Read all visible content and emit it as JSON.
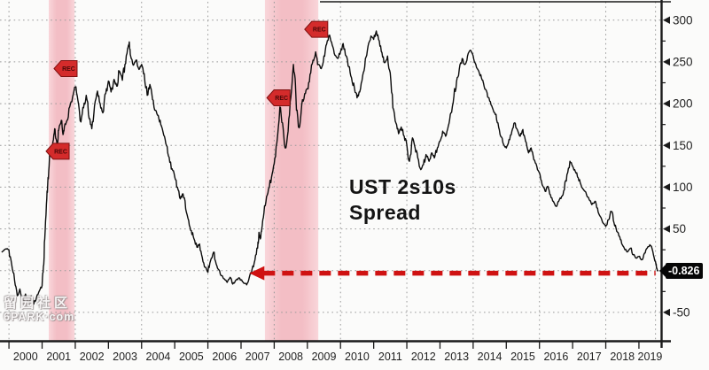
{
  "watermark": {
    "line1": "留园社区",
    "line2": "6PARK·com"
  },
  "chart_data": {
    "type": "line",
    "title": "UST 2s10s Spread",
    "title_lines": [
      "UST 2s10s",
      "Spread"
    ],
    "xlabel": "",
    "ylabel": "",
    "legend": "none",
    "grid": "dotted",
    "xlim": [
      1999.73,
      2019.67
    ],
    "ylim": [
      -84,
      322
    ],
    "x_ticks": [
      2000,
      2001,
      2002,
      2003,
      2004,
      2005,
      2006,
      2007,
      2008,
      2009,
      2010,
      2011,
      2012,
      2013,
      2014,
      2015,
      2016,
      2017,
      2018,
      2019
    ],
    "y_ticks": [
      300,
      250,
      200,
      150,
      100,
      50,
      -50
    ],
    "y_gridlines": [
      300,
      250,
      200,
      150,
      100,
      50,
      0,
      -50
    ],
    "y_minor_ticks": [
      275,
      225,
      175,
      125,
      75,
      25,
      -25
    ],
    "vgrid_years": [
      2000,
      2002,
      2004,
      2006,
      2008,
      2010,
      2012,
      2014,
      2016,
      2018,
      2019.5
    ],
    "last_value": -0.826,
    "last_value_label": "-0.826",
    "recession_bands": [
      {
        "from": 2001.2,
        "to": 2001.98
      },
      {
        "from": 2007.72,
        "to": 2009.33
      }
    ],
    "flags": [
      {
        "label": "REC",
        "x": 2001.12,
        "y": 143
      },
      {
        "label": "REC",
        "x": 2001.36,
        "y": 242
      },
      {
        "label": "REC",
        "x": 2007.78,
        "y": 207
      },
      {
        "label": "REC",
        "x": 2008.92,
        "y": 289
      }
    ],
    "arrow": {
      "y": -3,
      "x_from": 2007.25,
      "x_to": 2019.5
    },
    "colors": {
      "line": "#0c0c0c",
      "grid": "#9a9a9a",
      "band": "#f3bec5",
      "band_edge": "#f9d6da",
      "flag_fill": "#d42b2b",
      "flag_border": "#7e1111",
      "flag_text": "#4a0707",
      "arrow": "#cf1212",
      "axis": "#1a1a1a",
      "tick_text": "#1f1f1f",
      "value_box": "#060606"
    },
    "series": [
      {
        "name": "UST 2s10s Spread",
        "points": [
          [
            1999.78,
            22
          ],
          [
            1999.9,
            26
          ],
          [
            2000.0,
            25
          ],
          [
            2000.08,
            8
          ],
          [
            2000.17,
            -12
          ],
          [
            2000.25,
            -30
          ],
          [
            2000.33,
            -22
          ],
          [
            2000.42,
            -38
          ],
          [
            2000.5,
            -28
          ],
          [
            2000.58,
            -42
          ],
          [
            2000.67,
            -30
          ],
          [
            2000.75,
            -40
          ],
          [
            2000.83,
            -32
          ],
          [
            2000.92,
            -24
          ],
          [
            2001.0,
            -18
          ],
          [
            2001.04,
            5
          ],
          [
            2001.08,
            38
          ],
          [
            2001.13,
            80
          ],
          [
            2001.17,
            105
          ],
          [
            2001.21,
            125
          ],
          [
            2001.25,
            148
          ],
          [
            2001.29,
            136
          ],
          [
            2001.33,
            155
          ],
          [
            2001.38,
            170
          ],
          [
            2001.42,
            158
          ],
          [
            2001.46,
            150
          ],
          [
            2001.5,
            168
          ],
          [
            2001.58,
            180
          ],
          [
            2001.63,
            163
          ],
          [
            2001.67,
            172
          ],
          [
            2001.75,
            180
          ],
          [
            2001.83,
            196
          ],
          [
            2001.92,
            208
          ],
          [
            2002.0,
            220
          ],
          [
            2002.08,
            204
          ],
          [
            2002.17,
            178
          ],
          [
            2002.25,
            195
          ],
          [
            2002.33,
            210
          ],
          [
            2002.42,
            182
          ],
          [
            2002.5,
            170
          ],
          [
            2002.58,
            197
          ],
          [
            2002.67,
            215
          ],
          [
            2002.75,
            200
          ],
          [
            2002.83,
            189
          ],
          [
            2002.92,
            212
          ],
          [
            2003.0,
            227
          ],
          [
            2003.08,
            214
          ],
          [
            2003.17,
            229
          ],
          [
            2003.25,
            221
          ],
          [
            2003.33,
            239
          ],
          [
            2003.42,
            228
          ],
          [
            2003.5,
            247
          ],
          [
            2003.58,
            266
          ],
          [
            2003.63,
            274
          ],
          [
            2003.67,
            257
          ],
          [
            2003.75,
            246
          ],
          [
            2003.83,
            252
          ],
          [
            2003.92,
            241
          ],
          [
            2004.0,
            247
          ],
          [
            2004.08,
            236
          ],
          [
            2004.17,
            210
          ],
          [
            2004.25,
            223
          ],
          [
            2004.33,
            205
          ],
          [
            2004.42,
            192
          ],
          [
            2004.5,
            186
          ],
          [
            2004.58,
            175
          ],
          [
            2004.67,
            162
          ],
          [
            2004.75,
            150
          ],
          [
            2004.83,
            136
          ],
          [
            2004.92,
            122
          ],
          [
            2005.0,
            112
          ],
          [
            2005.08,
            100
          ],
          [
            2005.17,
            86
          ],
          [
            2005.25,
            92
          ],
          [
            2005.33,
            74
          ],
          [
            2005.42,
            60
          ],
          [
            2005.5,
            48
          ],
          [
            2005.58,
            38
          ],
          [
            2005.67,
            28
          ],
          [
            2005.75,
            32
          ],
          [
            2005.83,
            16
          ],
          [
            2005.92,
            4
          ],
          [
            2006.0,
            -2
          ],
          [
            2006.08,
            12
          ],
          [
            2006.17,
            22
          ],
          [
            2006.25,
            8
          ],
          [
            2006.33,
            1
          ],
          [
            2006.42,
            -6
          ],
          [
            2006.5,
            -10
          ],
          [
            2006.58,
            -14
          ],
          [
            2006.67,
            -8
          ],
          [
            2006.75,
            -16
          ],
          [
            2006.83,
            -12
          ],
          [
            2006.92,
            -9
          ],
          [
            2007.0,
            -11
          ],
          [
            2007.08,
            -15
          ],
          [
            2007.17,
            -17
          ],
          [
            2007.25,
            -8
          ],
          [
            2007.33,
            1
          ],
          [
            2007.42,
            13
          ],
          [
            2007.5,
            27
          ],
          [
            2007.54,
            46
          ],
          [
            2007.58,
            38
          ],
          [
            2007.63,
            52
          ],
          [
            2007.67,
            63
          ],
          [
            2007.75,
            82
          ],
          [
            2007.83,
            98
          ],
          [
            2007.92,
            112
          ],
          [
            2008.0,
            128
          ],
          [
            2008.08,
            153
          ],
          [
            2008.17,
            196
          ],
          [
            2008.25,
            177
          ],
          [
            2008.33,
            147
          ],
          [
            2008.42,
            167
          ],
          [
            2008.5,
            207
          ],
          [
            2008.58,
            247
          ],
          [
            2008.63,
            230
          ],
          [
            2008.67,
            192
          ],
          [
            2008.75,
            171
          ],
          [
            2008.83,
            199
          ],
          [
            2008.92,
            212
          ],
          [
            2009.0,
            218
          ],
          [
            2009.08,
            235
          ],
          [
            2009.17,
            252
          ],
          [
            2009.25,
            262
          ],
          [
            2009.33,
            247
          ],
          [
            2009.42,
            242
          ],
          [
            2009.5,
            257
          ],
          [
            2009.58,
            271
          ],
          [
            2009.67,
            282
          ],
          [
            2009.75,
            270
          ],
          [
            2009.83,
            258
          ],
          [
            2009.92,
            254
          ],
          [
            2010.0,
            262
          ],
          [
            2010.08,
            272
          ],
          [
            2010.17,
            257
          ],
          [
            2010.25,
            244
          ],
          [
            2010.33,
            231
          ],
          [
            2010.42,
            219
          ],
          [
            2010.5,
            207
          ],
          [
            2010.58,
            214
          ],
          [
            2010.67,
            234
          ],
          [
            2010.75,
            254
          ],
          [
            2010.83,
            269
          ],
          [
            2010.92,
            281
          ],
          [
            2011.0,
            277
          ],
          [
            2011.08,
            287
          ],
          [
            2011.17,
            275
          ],
          [
            2011.25,
            261
          ],
          [
            2011.33,
            249
          ],
          [
            2011.42,
            257
          ],
          [
            2011.5,
            237
          ],
          [
            2011.58,
            195
          ],
          [
            2011.67,
            177
          ],
          [
            2011.75,
            164
          ],
          [
            2011.83,
            172
          ],
          [
            2011.92,
            161
          ],
          [
            2012.0,
            151
          ],
          [
            2012.08,
            131
          ],
          [
            2012.17,
            159
          ],
          [
            2012.25,
            147
          ],
          [
            2012.33,
            135
          ],
          [
            2012.42,
            121
          ],
          [
            2012.5,
            127
          ],
          [
            2012.58,
            139
          ],
          [
            2012.67,
            131
          ],
          [
            2012.75,
            141
          ],
          [
            2012.83,
            135
          ],
          [
            2012.92,
            147
          ],
          [
            2013.0,
            155
          ],
          [
            2013.08,
            167
          ],
          [
            2013.17,
            161
          ],
          [
            2013.25,
            173
          ],
          [
            2013.33,
            189
          ],
          [
            2013.42,
            209
          ],
          [
            2013.5,
            227
          ],
          [
            2013.58,
            241
          ],
          [
            2013.67,
            254
          ],
          [
            2013.75,
            247
          ],
          [
            2013.83,
            257
          ],
          [
            2013.92,
            264
          ],
          [
            2014.0,
            257
          ],
          [
            2014.08,
            247
          ],
          [
            2014.17,
            239
          ],
          [
            2014.25,
            231
          ],
          [
            2014.33,
            221
          ],
          [
            2014.42,
            213
          ],
          [
            2014.5,
            203
          ],
          [
            2014.58,
            195
          ],
          [
            2014.67,
            187
          ],
          [
            2014.75,
            177
          ],
          [
            2014.83,
            161
          ],
          [
            2014.92,
            151
          ],
          [
            2015.0,
            147
          ],
          [
            2015.08,
            157
          ],
          [
            2015.17,
            167
          ],
          [
            2015.25,
            177
          ],
          [
            2015.33,
            169
          ],
          [
            2015.42,
            161
          ],
          [
            2015.5,
            169
          ],
          [
            2015.58,
            155
          ],
          [
            2015.67,
            141
          ],
          [
            2015.75,
            147
          ],
          [
            2015.83,
            133
          ],
          [
            2015.92,
            125
          ],
          [
            2016.0,
            117
          ],
          [
            2016.08,
            103
          ],
          [
            2016.17,
            95
          ],
          [
            2016.25,
            101
          ],
          [
            2016.33,
            91
          ],
          [
            2016.42,
            83
          ],
          [
            2016.5,
            77
          ],
          [
            2016.58,
            83
          ],
          [
            2016.67,
            89
          ],
          [
            2016.75,
            97
          ],
          [
            2016.83,
            115
          ],
          [
            2016.92,
            131
          ],
          [
            2017.0,
            125
          ],
          [
            2017.08,
            119
          ],
          [
            2017.17,
            111
          ],
          [
            2017.25,
            103
          ],
          [
            2017.33,
            97
          ],
          [
            2017.42,
            91
          ],
          [
            2017.5,
            85
          ],
          [
            2017.58,
            79
          ],
          [
            2017.67,
            83
          ],
          [
            2017.75,
            75
          ],
          [
            2017.83,
            65
          ],
          [
            2017.92,
            57
          ],
          [
            2018.0,
            53
          ],
          [
            2018.08,
            61
          ],
          [
            2018.17,
            71
          ],
          [
            2018.25,
            57
          ],
          [
            2018.33,
            47
          ],
          [
            2018.42,
            41
          ],
          [
            2018.5,
            31
          ],
          [
            2018.58,
            25
          ],
          [
            2018.67,
            23
          ],
          [
            2018.75,
            27
          ],
          [
            2018.83,
            19
          ],
          [
            2018.92,
            15
          ],
          [
            2019.0,
            17
          ],
          [
            2019.08,
            13
          ],
          [
            2019.17,
            21
          ],
          [
            2019.25,
            27
          ],
          [
            2019.33,
            31
          ],
          [
            2019.42,
            23
          ],
          [
            2019.5,
            11
          ],
          [
            2019.54,
            3
          ],
          [
            2019.57,
            -0.826
          ]
        ]
      }
    ],
    "jitter": {
      "amplitude_max": 6,
      "amplitude_min": 1.2,
      "subdivisions": 3,
      "seed": 11
    }
  }
}
